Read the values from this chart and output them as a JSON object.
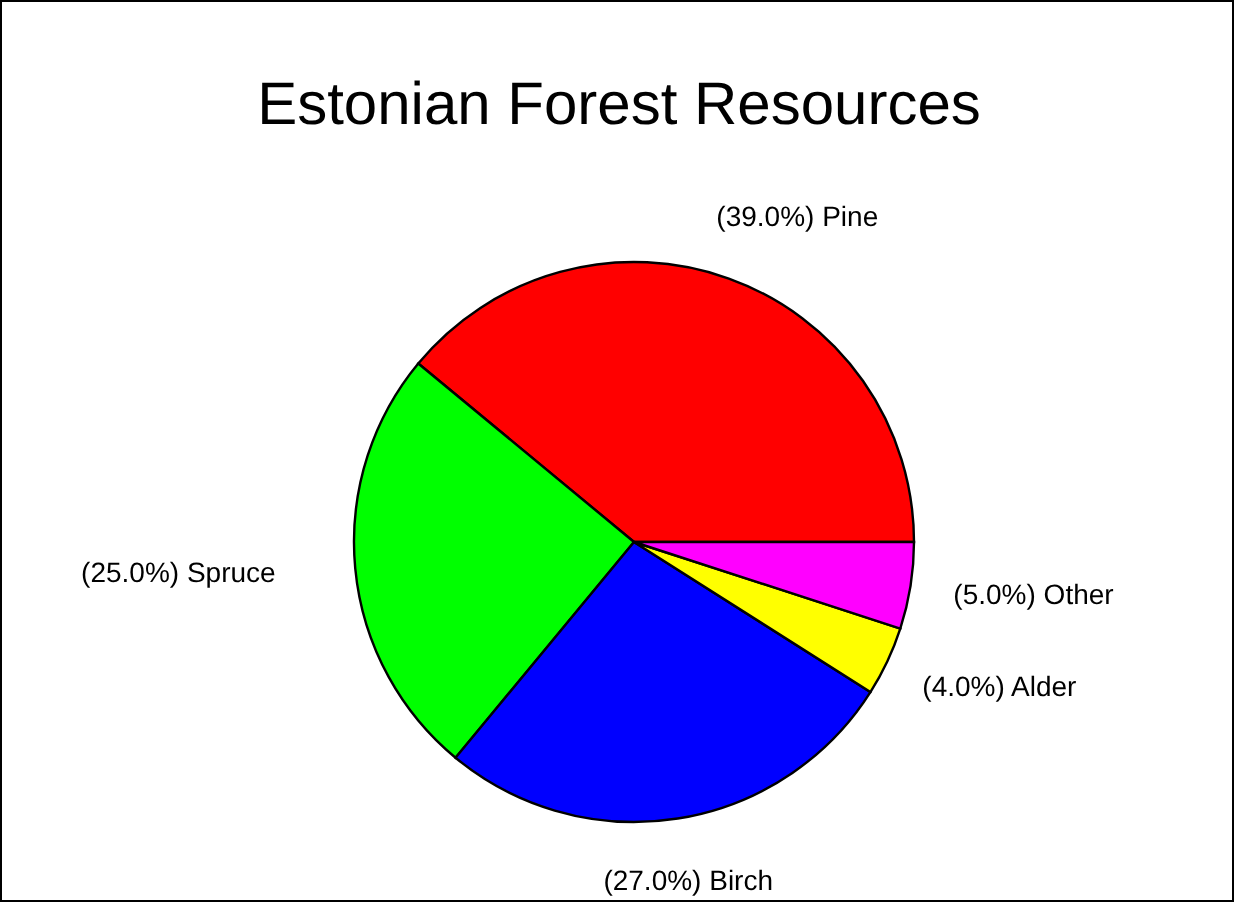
{
  "chart_data": {
    "type": "pie",
    "title": "Estonian Forest Resources",
    "categories": [
      "Pine",
      "Spruce",
      "Birch",
      "Alder",
      "Other"
    ],
    "values": [
      39,
      25,
      27,
      4,
      5
    ],
    "colors": [
      "#ff0000",
      "#00ff00",
      "#0000ff",
      "#ffff00",
      "#ff00ff"
    ],
    "value_labels": [
      "(39.0%)",
      "(25.0%)",
      "(27.0%)",
      "(4.0%)",
      "(5.0%)"
    ]
  }
}
